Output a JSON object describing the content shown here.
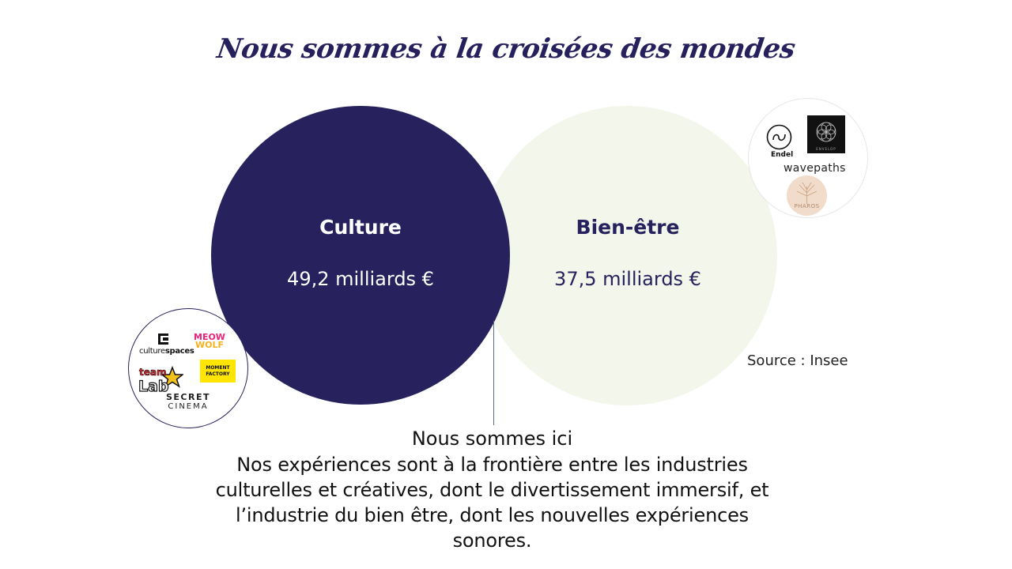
{
  "title": "Nous sommes à la croisées des mondes",
  "culture": {
    "label": "Culture",
    "value": "49,2 milliards €",
    "color": "#27225d"
  },
  "bien_etre": {
    "label": "Bien-être",
    "value": "37,5 milliards €",
    "color": "#f3f6ea"
  },
  "source": "Source : Insee",
  "caption": {
    "title": "Nous sommes ici",
    "body": "Nos expériences sont à la frontière entre les industries culturelles et créatives, dont le divertissement immersif, et l’industrie du bien être, dont les nouvelles expériences sonores."
  },
  "logos_culture": {
    "culturespaces_a": "culture",
    "culturespaces_b": "spaces",
    "meow_wolf_1": "MEOW",
    "meow_wolf_2": "WOLF",
    "teamlab_1": "team",
    "teamlab_2": "Lab",
    "moment_factory_1": "MOMENT",
    "moment_factory_2": "FACTORY",
    "secret_cinema_1": "SECRET",
    "secret_cinema_2": "CINEMA"
  },
  "logos_bien_etre": {
    "endel": "Endel",
    "envelop": "ENVELOP",
    "wavepaths": "wavepaths",
    "pharos": "PHAROS"
  },
  "icons": {
    "culturespaces": "culturespaces-logo-icon",
    "teamlab": "teamlab-star-icon",
    "endel": "endel-logo-icon",
    "envelop": "envelop-flower-icon",
    "pharos": "pharos-tree-icon"
  }
}
